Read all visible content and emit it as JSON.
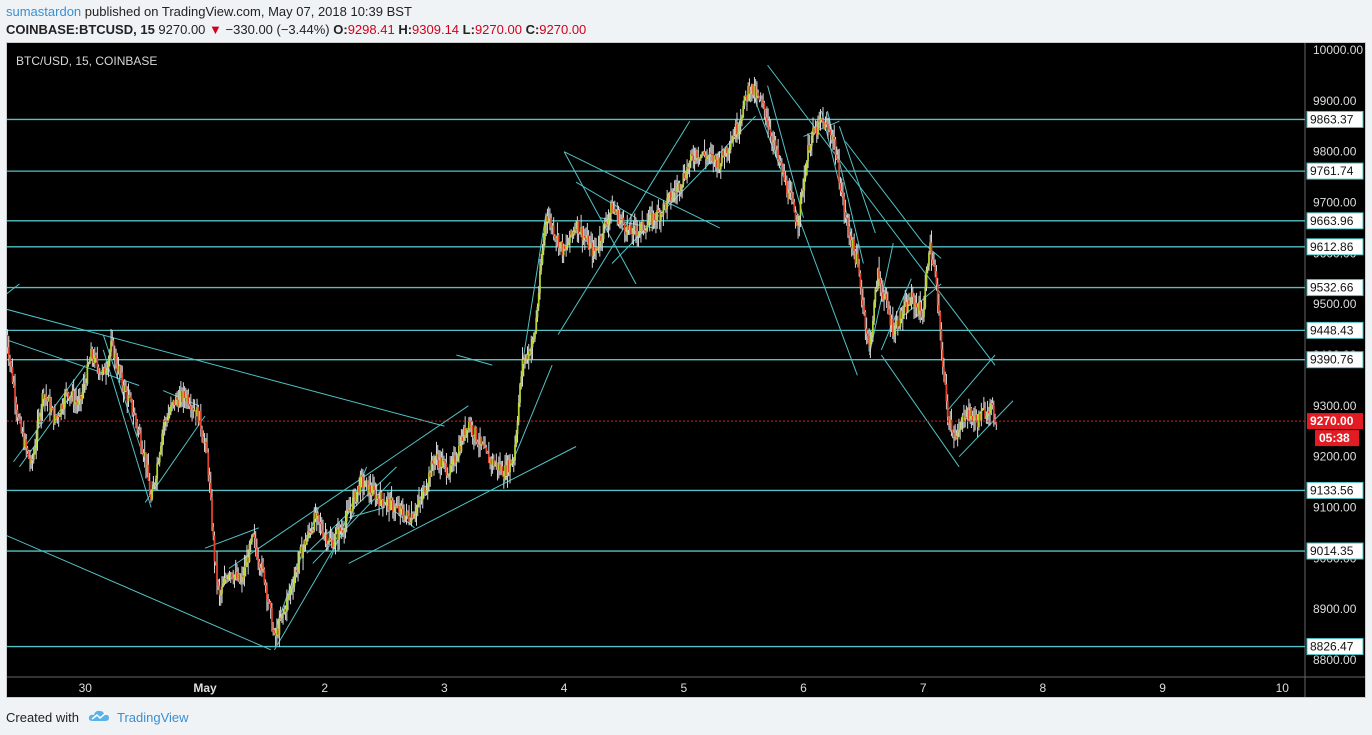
{
  "header": {
    "author": "sumastardon",
    "published_text": " published on TradingView.com, May 07, 2018 10:39 BST",
    "symbol": "COINBASE:BTCUSD, 15",
    "last": "9270.00",
    "change_arrow": "▼",
    "change": "−330.00 (−3.44%)",
    "open_label": "O:",
    "open": "9298.41",
    "high_label": "H:",
    "high": "9309.14",
    "low_label": "L:",
    "low": "9270.00",
    "close_label": "C:",
    "close": "9270.00"
  },
  "footer": {
    "created_with": "Created with",
    "brand": "TradingView"
  },
  "colors": {
    "background": "#000000",
    "line": "#52c2c4",
    "up_candle": "#b5d333",
    "down_candle": "#e0422b",
    "wick": "#d8d8d8",
    "last_price": "#e31b23",
    "price_label_bg": "#ffffff"
  },
  "chart_data": {
    "type": "candlestick",
    "title": "BTC/USD, 15, COINBASE",
    "ylim": [
      8780,
      10010
    ],
    "y_ticks": [
      "10000.00",
      "9900.00",
      "9800.00",
      "9700.00",
      "9600.00",
      "9500.00",
      "9400.00",
      "9300.00",
      "9200.00",
      "9100.00",
      "9000.00",
      "8900.00",
      "8800.00"
    ],
    "x_ticks": [
      {
        "label": "30",
        "t": -1
      },
      {
        "label": "May",
        "t": 0
      },
      {
        "label": "2",
        "t": 1
      },
      {
        "label": "3",
        "t": 2
      },
      {
        "label": "4",
        "t": 3
      },
      {
        "label": "5",
        "t": 4
      },
      {
        "label": "6",
        "t": 5
      },
      {
        "label": "7",
        "t": 6
      },
      {
        "label": "8",
        "t": 7
      },
      {
        "label": "9",
        "t": 8
      },
      {
        "label": "10",
        "t": 9
      }
    ],
    "xlim": [
      -1.66,
      9.1
    ],
    "horizontal_levels": [
      9863.37,
      9761.74,
      9663.96,
      9612.86,
      9532.66,
      9448.43,
      9390.76,
      9133.56,
      9014.35,
      8826.47
    ],
    "level_labels": [
      "9863.37",
      "9761.74",
      "9663.96",
      "9612.86",
      "9532.66",
      "9448.43",
      "9390.76",
      "9133.56",
      "9014.35",
      "8826.47"
    ],
    "last_price": 9270.0,
    "last_price_label": "9270.00",
    "countdown": "05:38",
    "price_path": [
      [
        -1.66,
        9440
      ],
      [
        -1.55,
        9260
      ],
      [
        -1.45,
        9180
      ],
      [
        -1.35,
        9330
      ],
      [
        -1.25,
        9270
      ],
      [
        -1.15,
        9330
      ],
      [
        -1.05,
        9300
      ],
      [
        -0.95,
        9400
      ],
      [
        -0.85,
        9360
      ],
      [
        -0.78,
        9420
      ],
      [
        -0.7,
        9350
      ],
      [
        -0.6,
        9290
      ],
      [
        -0.5,
        9200
      ],
      [
        -0.45,
        9110
      ],
      [
        -0.35,
        9260
      ],
      [
        -0.25,
        9310
      ],
      [
        -0.15,
        9320
      ],
      [
        -0.05,
        9280
      ],
      [
        0.02,
        9200
      ],
      [
        0.08,
        9000
      ],
      [
        0.12,
        8920
      ],
      [
        0.2,
        8980
      ],
      [
        0.3,
        8950
      ],
      [
        0.4,
        9040
      ],
      [
        0.5,
        8960
      ],
      [
        0.58,
        8840
      ],
      [
        0.68,
        8910
      ],
      [
        0.8,
        9010
      ],
      [
        0.92,
        9080
      ],
      [
        1.05,
        9030
      ],
      [
        1.15,
        9060
      ],
      [
        1.3,
        9150
      ],
      [
        1.45,
        9120
      ],
      [
        1.58,
        9100
      ],
      [
        1.7,
        9080
      ],
      [
        1.8,
        9110
      ],
      [
        1.92,
        9200
      ],
      [
        2.05,
        9170
      ],
      [
        2.2,
        9270
      ],
      [
        2.35,
        9200
      ],
      [
        2.5,
        9170
      ],
      [
        2.58,
        9200
      ],
      [
        2.65,
        9380
      ],
      [
        2.75,
        9430
      ],
      [
        2.85,
        9680
      ],
      [
        3.0,
        9600
      ],
      [
        3.1,
        9660
      ],
      [
        3.25,
        9600
      ],
      [
        3.4,
        9690
      ],
      [
        3.55,
        9640
      ],
      [
        3.65,
        9650
      ],
      [
        3.8,
        9680
      ],
      [
        3.95,
        9730
      ],
      [
        4.1,
        9800
      ],
      [
        4.3,
        9780
      ],
      [
        4.45,
        9850
      ],
      [
        4.55,
        9930
      ],
      [
        4.68,
        9880
      ],
      [
        4.78,
        9790
      ],
      [
        4.9,
        9700
      ],
      [
        4.95,
        9660
      ],
      [
        5.05,
        9820
      ],
      [
        5.15,
        9860
      ],
      [
        5.25,
        9830
      ],
      [
        5.35,
        9670
      ],
      [
        5.45,
        9580
      ],
      [
        5.55,
        9410
      ],
      [
        5.62,
        9560
      ],
      [
        5.75,
        9450
      ],
      [
        5.9,
        9510
      ],
      [
        6.0,
        9480
      ],
      [
        6.05,
        9620
      ],
      [
        6.1,
        9560
      ],
      [
        6.15,
        9420
      ],
      [
        6.2,
        9290
      ],
      [
        6.28,
        9230
      ],
      [
        6.35,
        9290
      ],
      [
        6.45,
        9270
      ],
      [
        6.55,
        9300
      ],
      [
        6.62,
        9270
      ]
    ]
  }
}
